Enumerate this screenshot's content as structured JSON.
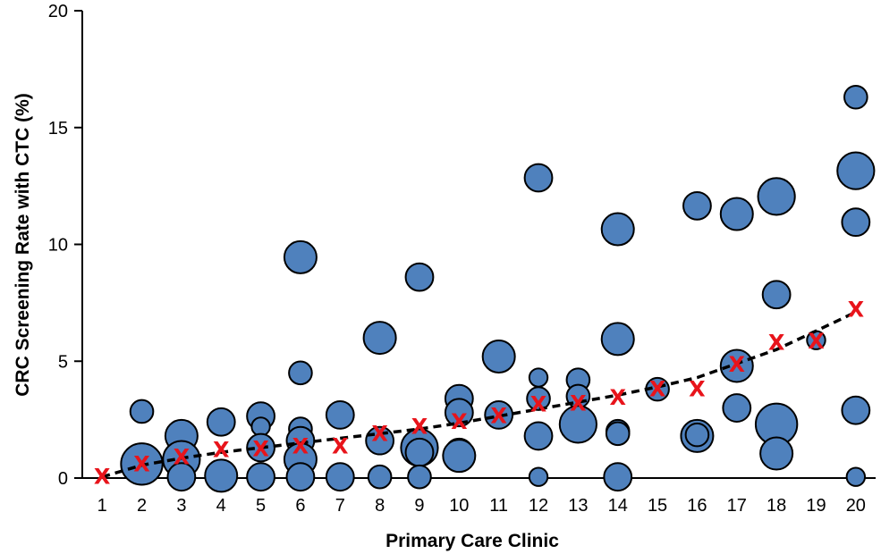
{
  "chart_data": {
    "type": "scatter",
    "xlabel": "Primary Care Clinic",
    "ylabel": "CRC Screening Rate with CTC (%)",
    "xlim": [
      0.5,
      20.5
    ],
    "ylim": [
      0,
      20
    ],
    "x_ticks": [
      1,
      2,
      3,
      4,
      5,
      6,
      7,
      8,
      9,
      10,
      11,
      12,
      13,
      14,
      15,
      16,
      17,
      18,
      19,
      20
    ],
    "y_ticks": [
      0,
      5,
      10,
      15,
      20
    ],
    "grid": false,
    "legend": "none",
    "colors": {
      "bubble_fill": "#4f81bd",
      "bubble_edge": "#000000",
      "mean_marker": "#e8141b",
      "trend_line": "#000000"
    },
    "series": [
      {
        "type": "bubble",
        "points": [
          {
            "x": 2,
            "y": 2.85,
            "size": 3
          },
          {
            "x": 2,
            "y": 0.6,
            "size": 7
          },
          {
            "x": 3,
            "y": 1.8,
            "size": 5
          },
          {
            "x": 3,
            "y": 0.8,
            "size": 6
          },
          {
            "x": 3,
            "y": 0.05,
            "size": 4
          },
          {
            "x": 4,
            "y": 2.4,
            "size": 4
          },
          {
            "x": 4,
            "y": 0.1,
            "size": 5
          },
          {
            "x": 5,
            "y": 2.65,
            "size": 4
          },
          {
            "x": 5,
            "y": 2.2,
            "size": 2
          },
          {
            "x": 5,
            "y": 1.3,
            "size": 4
          },
          {
            "x": 5,
            "y": 0.05,
            "size": 4
          },
          {
            "x": 6,
            "y": 9.45,
            "size": 5
          },
          {
            "x": 6,
            "y": 4.5,
            "size": 3
          },
          {
            "x": 6,
            "y": 2.1,
            "size": 3
          },
          {
            "x": 6,
            "y": 1.6,
            "size": 4
          },
          {
            "x": 6,
            "y": 0.8,
            "size": 5
          },
          {
            "x": 6,
            "y": 0.05,
            "size": 4
          },
          {
            "x": 7,
            "y": 2.7,
            "size": 4
          },
          {
            "x": 7,
            "y": 0.05,
            "size": 4
          },
          {
            "x": 8,
            "y": 6.0,
            "size": 5
          },
          {
            "x": 8,
            "y": 1.6,
            "size": 4
          },
          {
            "x": 8,
            "y": 0.05,
            "size": 3
          },
          {
            "x": 9,
            "y": 8.6,
            "size": 4
          },
          {
            "x": 9,
            "y": 1.3,
            "size": 6
          },
          {
            "x": 9,
            "y": 1.1,
            "size": 4
          },
          {
            "x": 9,
            "y": 0.05,
            "size": 3
          },
          {
            "x": 10,
            "y": 3.4,
            "size": 4
          },
          {
            "x": 10,
            "y": 2.8,
            "size": 4
          },
          {
            "x": 10,
            "y": 1.1,
            "size": 4
          },
          {
            "x": 10,
            "y": 0.95,
            "size": 5
          },
          {
            "x": 11,
            "y": 5.2,
            "size": 5
          },
          {
            "x": 11,
            "y": 2.7,
            "size": 4
          },
          {
            "x": 12,
            "y": 12.85,
            "size": 4
          },
          {
            "x": 12,
            "y": 4.3,
            "size": 2
          },
          {
            "x": 12,
            "y": 3.4,
            "size": 3
          },
          {
            "x": 12,
            "y": 1.8,
            "size": 4
          },
          {
            "x": 12,
            "y": 0.05,
            "size": 2
          },
          {
            "x": 13,
            "y": 4.2,
            "size": 3
          },
          {
            "x": 13,
            "y": 3.5,
            "size": 3
          },
          {
            "x": 13,
            "y": 2.3,
            "size": 6
          },
          {
            "x": 14,
            "y": 10.65,
            "size": 5
          },
          {
            "x": 14,
            "y": 5.95,
            "size": 5
          },
          {
            "x": 14,
            "y": 2.0,
            "size": 3
          },
          {
            "x": 14,
            "y": 1.9,
            "size": 3
          },
          {
            "x": 14,
            "y": 0.05,
            "size": 4
          },
          {
            "x": 15,
            "y": 3.8,
            "size": 3
          },
          {
            "x": 16,
            "y": 11.65,
            "size": 4
          },
          {
            "x": 16,
            "y": 1.8,
            "size": 5
          },
          {
            "x": 16,
            "y": 1.85,
            "size": 3
          },
          {
            "x": 17,
            "y": 11.3,
            "size": 5
          },
          {
            "x": 17,
            "y": 4.8,
            "size": 5
          },
          {
            "x": 17,
            "y": 3.0,
            "size": 4
          },
          {
            "x": 18,
            "y": 12.05,
            "size": 6
          },
          {
            "x": 18,
            "y": 7.85,
            "size": 4
          },
          {
            "x": 18,
            "y": 2.3,
            "size": 7
          },
          {
            "x": 18,
            "y": 1.05,
            "size": 5
          },
          {
            "x": 19,
            "y": 5.9,
            "size": 2
          },
          {
            "x": 20,
            "y": 16.3,
            "size": 3
          },
          {
            "x": 20,
            "y": 13.15,
            "size": 6
          },
          {
            "x": 20,
            "y": 10.95,
            "size": 4
          },
          {
            "x": 20,
            "y": 2.9,
            "size": 4
          },
          {
            "x": 20,
            "y": 0.05,
            "size": 2
          }
        ]
      },
      {
        "type": "mean-marker",
        "marker": "X",
        "x": [
          1,
          2,
          3,
          4,
          5,
          6,
          7,
          8,
          9,
          10,
          11,
          12,
          13,
          14,
          15,
          16,
          17,
          18,
          19,
          20
        ],
        "y": [
          0.05,
          0.6,
          0.9,
          1.2,
          1.25,
          1.35,
          1.35,
          1.9,
          2.2,
          2.4,
          2.65,
          3.15,
          3.2,
          3.45,
          3.8,
          3.8,
          4.85,
          5.8,
          5.85,
          7.2
        ]
      },
      {
        "type": "trend-line",
        "style": "dashed",
        "x": [
          1,
          2,
          3,
          4,
          5,
          6,
          7,
          8,
          9,
          10,
          11,
          12,
          13,
          14,
          15,
          16,
          17,
          18,
          19,
          20
        ],
        "y": [
          0.05,
          0.55,
          0.85,
          1.1,
          1.3,
          1.5,
          1.7,
          1.9,
          2.1,
          2.35,
          2.65,
          2.95,
          3.25,
          3.55,
          3.9,
          4.3,
          4.9,
          5.5,
          6.3,
          7.1
        ]
      }
    ]
  }
}
